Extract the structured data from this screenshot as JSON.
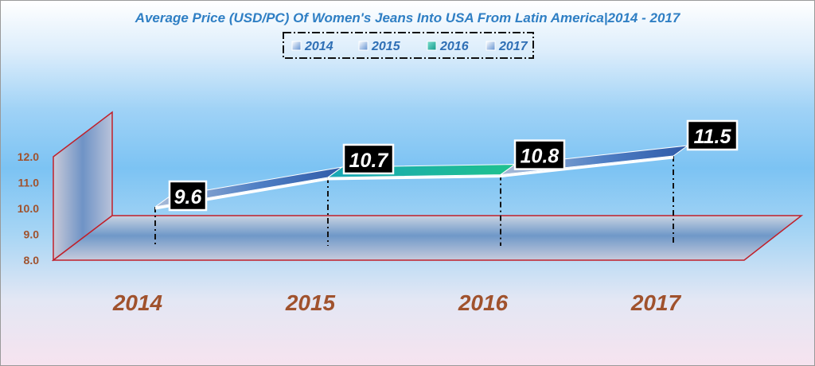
{
  "chart_data": {
    "type": "area",
    "title": "Average Price (USD/PC) Of Women's Jeans Into USA From Latin America|2014 - 2017",
    "categories": [
      "2014",
      "2015",
      "2016",
      "2017"
    ],
    "values": [
      9.6,
      10.7,
      10.8,
      11.5
    ],
    "data_labels": [
      "9.6",
      "10.7",
      "10.8",
      "11.5"
    ],
    "legend": [
      "2014",
      "2015",
      "2016",
      "2017"
    ],
    "legend_position": "top",
    "y_ticks": [
      "8.0",
      "9.0",
      "10.0",
      "11.0",
      "12.0"
    ],
    "ylim": [
      8,
      12
    ],
    "grid": false,
    "xlabel": "",
    "ylabel": ""
  },
  "colors": {
    "title": "#2f7fc4",
    "tick_labels": "#a0522d",
    "walls_border": "#c0202a",
    "segment_2016": "#1fb7a6",
    "segment_default": "#5a8fd0"
  }
}
